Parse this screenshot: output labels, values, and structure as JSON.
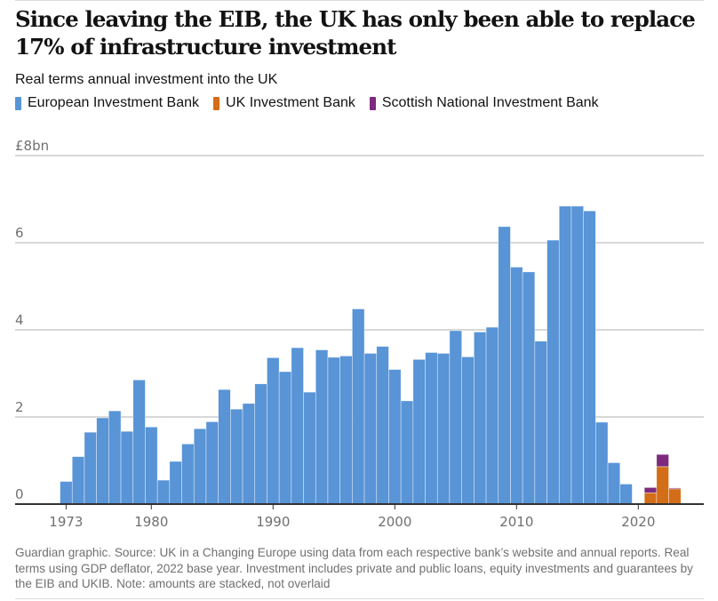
{
  "header": {
    "title": "Since leaving the EIB, the UK has only been able to replace 17% of infrastructure investment",
    "subtitle": "Real terms annual investment into the UK"
  },
  "legend": [
    {
      "name": "European Investment Bank",
      "color": "#5894d6"
    },
    {
      "name": "UK Investment Bank",
      "color": "#d46d17"
    },
    {
      "name": "Scottish National Investment Bank",
      "color": "#7d2a7f"
    }
  ],
  "footnote": "Guardian graphic. Source: UK in a Changing Europe using data from each respective bank’s website and annual reports. Real terms using GDP deflator, 2022 base year. Investment includes private and public loans, equity investments and guarantees by the EIB and UKIB. Note: amounts are stacked, not overlaid",
  "chart_data": {
    "type": "bar",
    "stacked": true,
    "title": "Since leaving the EIB, the UK has only been able to replace 17% of infrastructure investment",
    "subtitle": "Real terms annual investment into the UK",
    "xlabel": "",
    "ylabel": "£bn",
    "ylim": [
      0,
      8
    ],
    "yticks": [
      0,
      2,
      4,
      6,
      8
    ],
    "ytick_labels": [
      "0",
      "2",
      "4",
      "6",
      "£8bn"
    ],
    "xlim": [
      1970,
      2025
    ],
    "xticks": [
      1973,
      1980,
      1990,
      2000,
      2010,
      2020
    ],
    "xtick_labels": [
      "1973",
      "1980",
      "1990",
      "2000",
      "2010",
      "2020"
    ],
    "grid": true,
    "legend_position": "top-left",
    "x": [
      1973,
      1974,
      1975,
      1976,
      1977,
      1978,
      1979,
      1980,
      1981,
      1982,
      1983,
      1984,
      1985,
      1986,
      1987,
      1988,
      1989,
      1990,
      1991,
      1992,
      1993,
      1994,
      1995,
      1996,
      1997,
      1998,
      1999,
      2000,
      2001,
      2002,
      2003,
      2004,
      2005,
      2006,
      2007,
      2008,
      2009,
      2010,
      2011,
      2012,
      2013,
      2014,
      2015,
      2016,
      2017,
      2018,
      2019,
      2020,
      2021,
      2022,
      2023
    ],
    "series": [
      {
        "name": "European Investment Bank",
        "color": "#5894d6",
        "values": [
          0.52,
          1.09,
          1.65,
          1.98,
          2.14,
          1.67,
          2.85,
          1.77,
          0.55,
          0.98,
          1.38,
          1.73,
          1.89,
          2.63,
          2.18,
          2.31,
          2.76,
          3.36,
          3.04,
          3.59,
          2.57,
          3.54,
          3.37,
          3.4,
          4.48,
          3.46,
          3.62,
          3.09,
          2.37,
          3.32,
          3.48,
          3.46,
          3.98,
          3.38,
          3.95,
          4.06,
          6.37,
          5.44,
          5.33,
          3.74,
          6.06,
          6.84,
          6.84,
          6.73,
          1.88,
          0.95,
          0.46,
          0,
          0,
          0,
          0
        ]
      },
      {
        "name": "UK Investment Bank",
        "color": "#d46d17",
        "values": [
          0,
          0,
          0,
          0,
          0,
          0,
          0,
          0,
          0,
          0,
          0,
          0,
          0,
          0,
          0,
          0,
          0,
          0,
          0,
          0,
          0,
          0,
          0,
          0,
          0,
          0,
          0,
          0,
          0,
          0,
          0,
          0,
          0,
          0,
          0,
          0,
          0,
          0,
          0,
          0,
          0,
          0,
          0,
          0,
          0,
          0,
          0,
          0,
          0.26,
          0.86,
          0.35
        ]
      },
      {
        "name": "Scottish National Investment Bank",
        "color": "#7d2a7f",
        "values": [
          0,
          0,
          0,
          0,
          0,
          0,
          0,
          0,
          0,
          0,
          0,
          0,
          0,
          0,
          0,
          0,
          0,
          0,
          0,
          0,
          0,
          0,
          0,
          0,
          0,
          0,
          0,
          0,
          0,
          0,
          0,
          0,
          0,
          0,
          0,
          0,
          0,
          0,
          0,
          0,
          0,
          0,
          0,
          0,
          0,
          0,
          0,
          0,
          0.12,
          0.28,
          0.02
        ]
      }
    ]
  }
}
